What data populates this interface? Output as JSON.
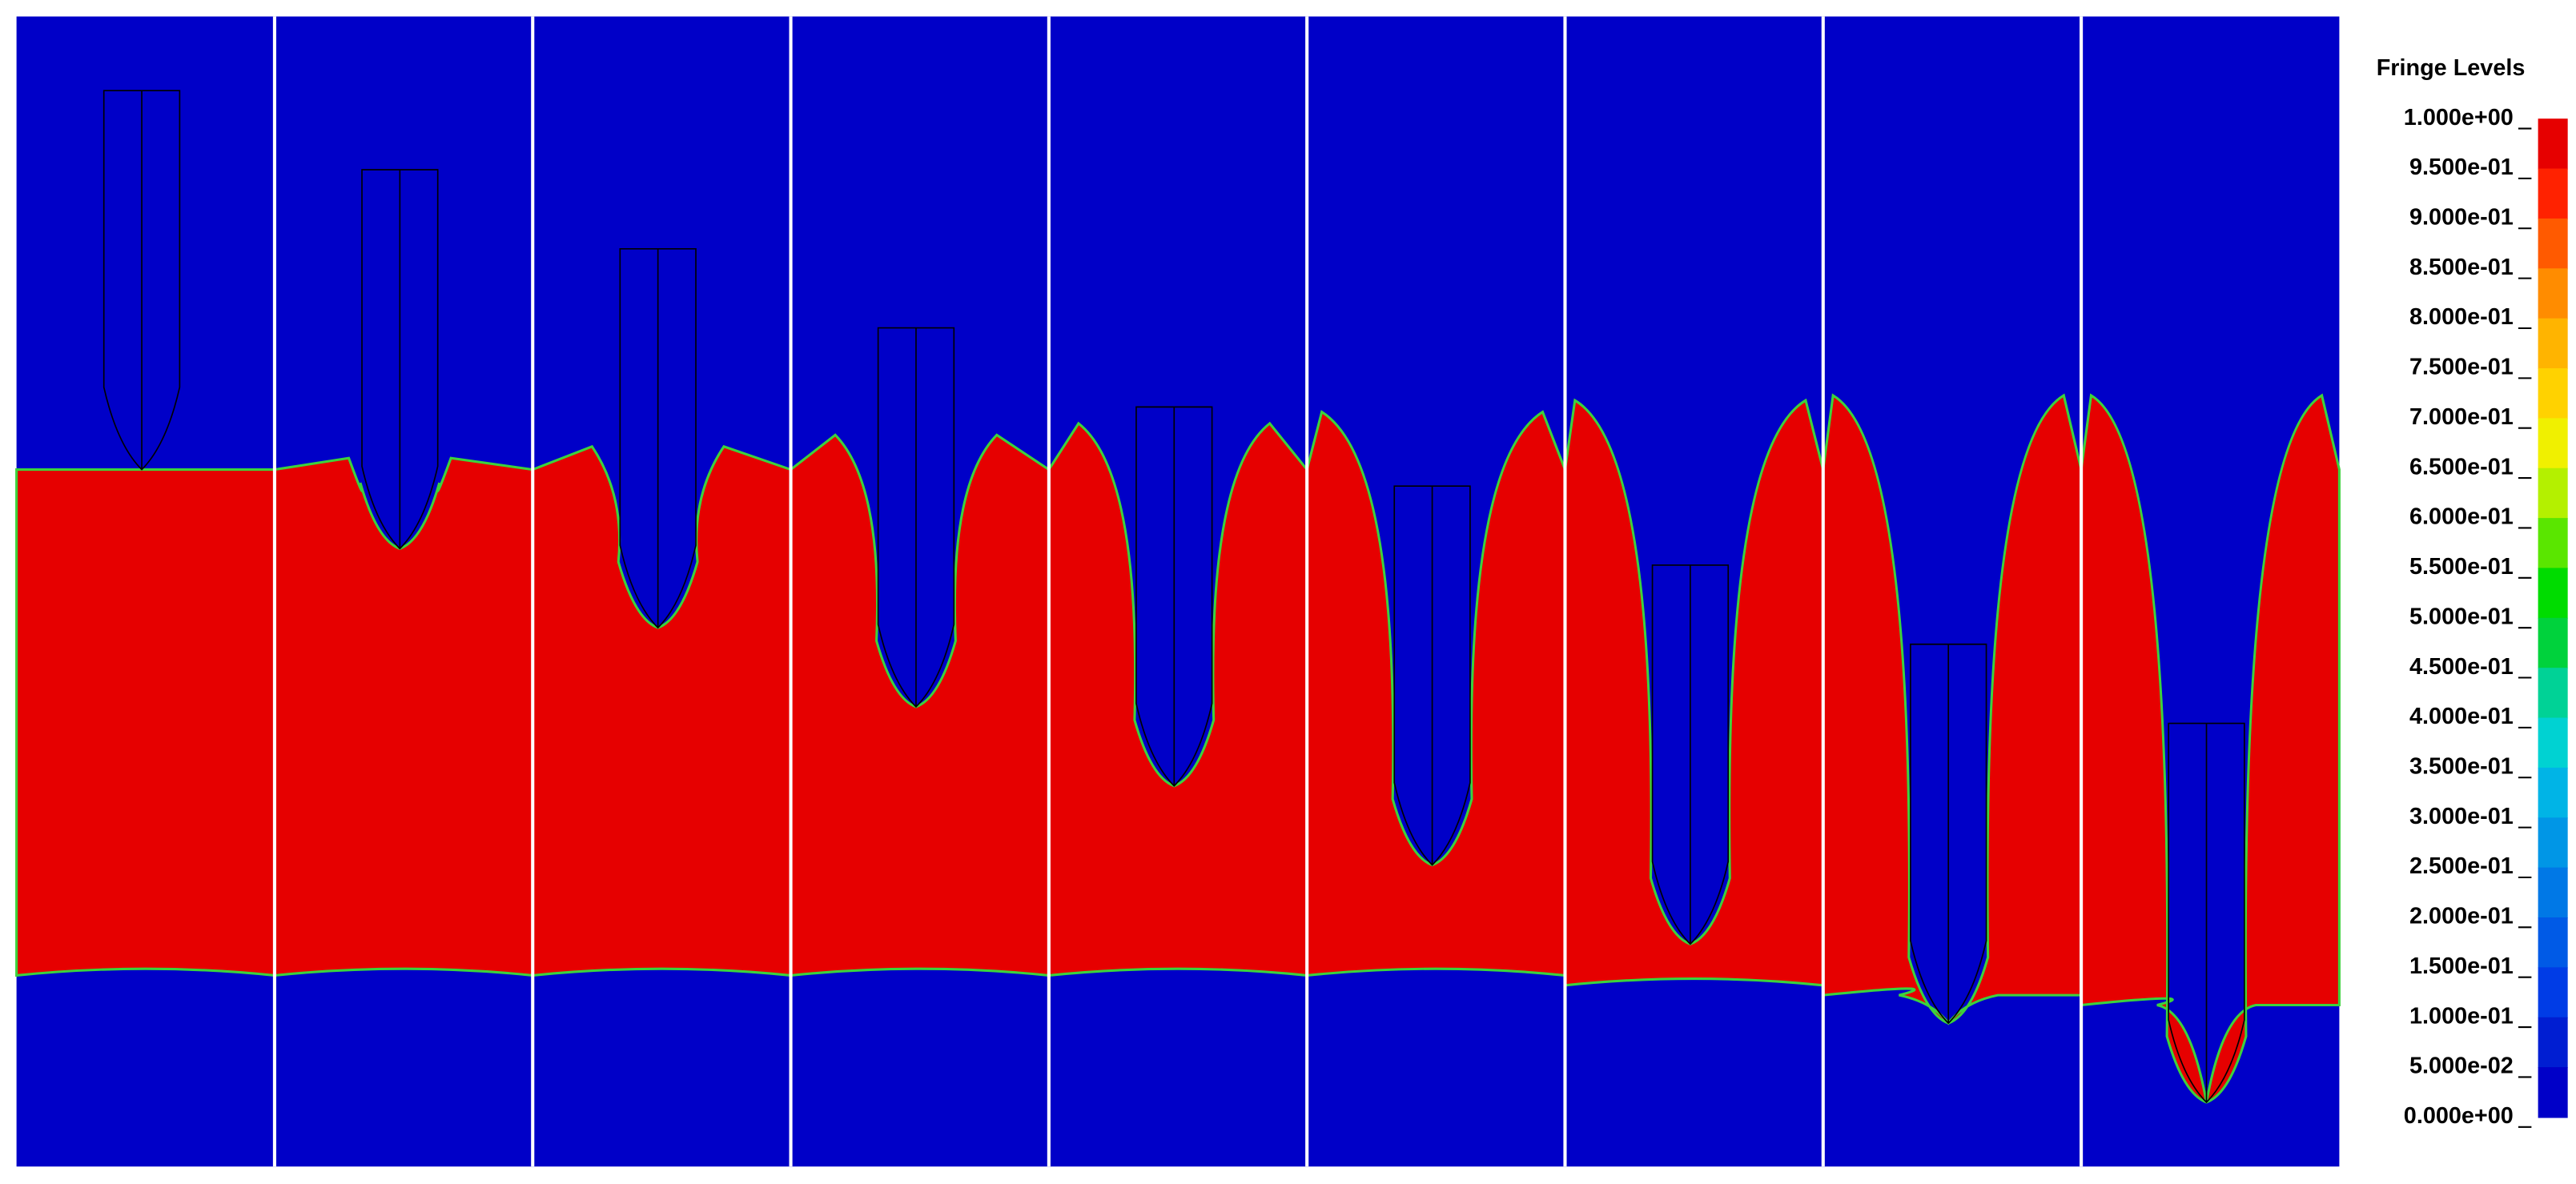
{
  "legend": {
    "title": "Fringe Levels",
    "levels": [
      "1.000e+00",
      "9.500e-01",
      "9.000e-01",
      "8.500e-01",
      "8.000e-01",
      "7.500e-01",
      "7.000e-01",
      "6.500e-01",
      "6.000e-01",
      "5.500e-01",
      "5.000e-01",
      "4.500e-01",
      "4.000e-01",
      "3.500e-01",
      "3.000e-01",
      "2.500e-01",
      "2.000e-01",
      "1.500e-01",
      "1.000e-01",
      "5.000e-02",
      "0.000e+00"
    ],
    "colors": [
      "#e60000",
      "#ff2200",
      "#ff5a00",
      "#ff8c00",
      "#ffb400",
      "#ffd200",
      "#f0f000",
      "#b4f000",
      "#5ae600",
      "#00dc00",
      "#00d23c",
      "#00d296",
      "#00d2d2",
      "#00b4e6",
      "#0096e6",
      "#0078e6",
      "#005ae6",
      "#003ce6",
      "#001ed2",
      "#0000c8"
    ]
  }
}
